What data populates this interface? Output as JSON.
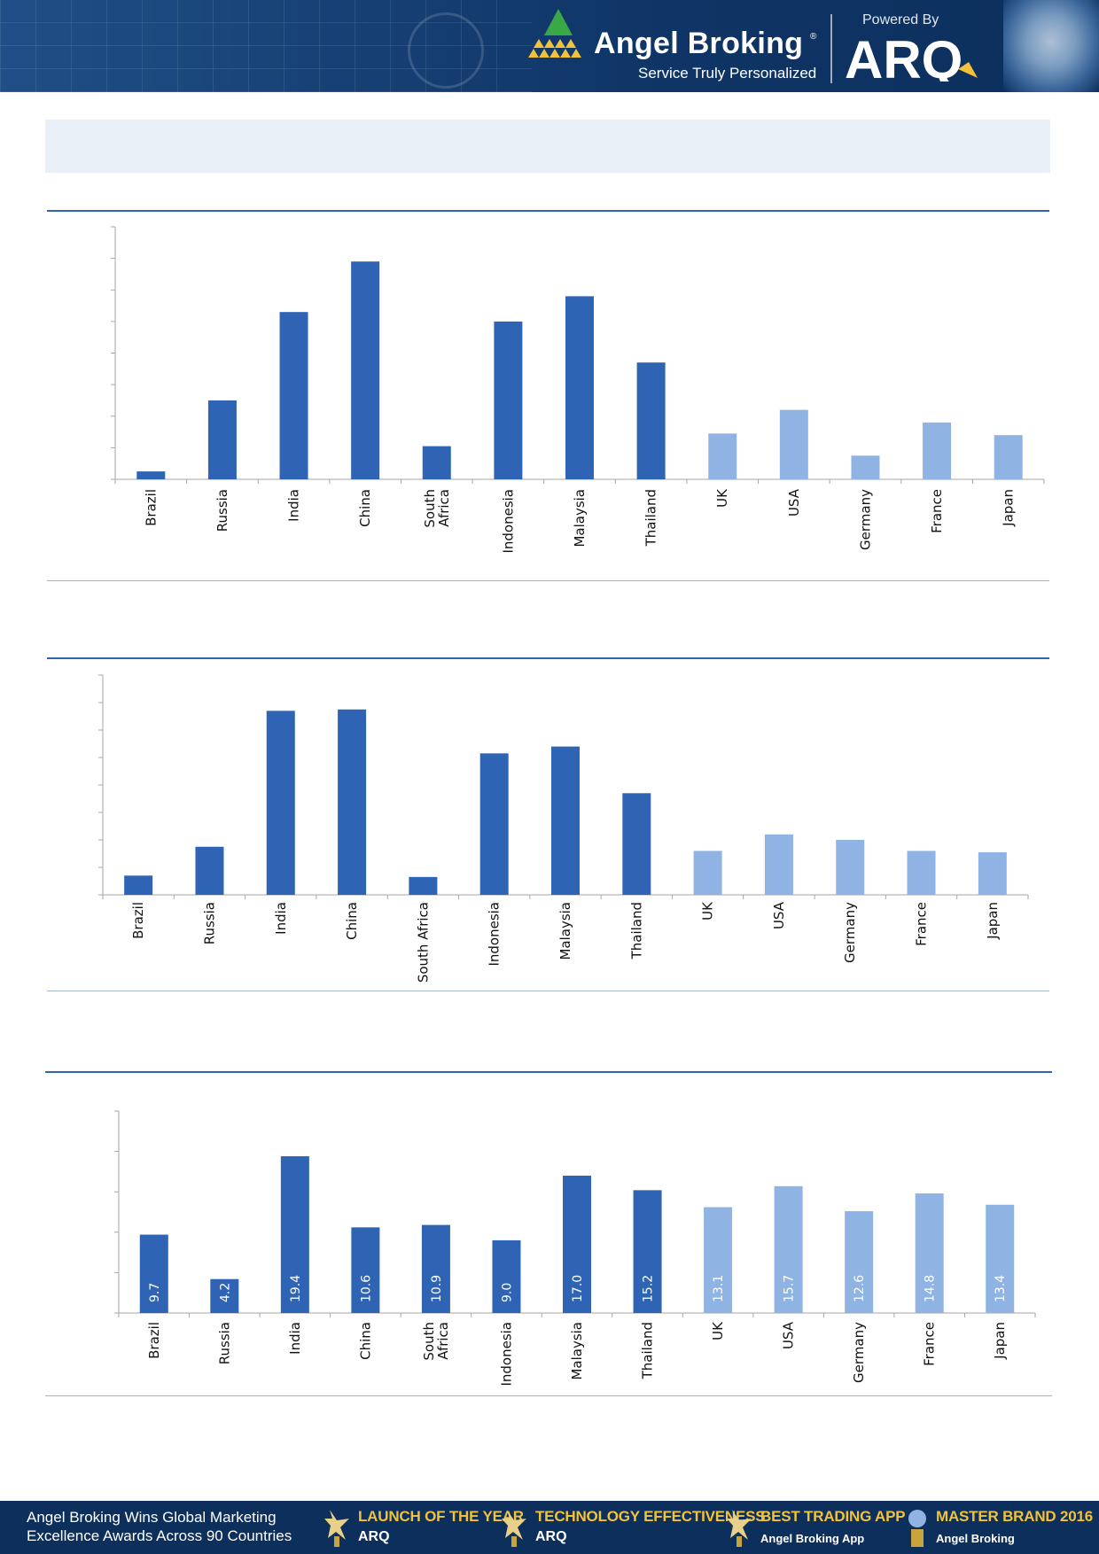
{
  "header": {
    "brand_name": "Angel Broking",
    "brand_registered": "®",
    "brand_tagline": "Service Truly Personalized",
    "powered_by": "Powered By",
    "partner_logo": "ARQ",
    "colors": {
      "header_bg": "#0f3566",
      "accent_gold": "#f2c23a",
      "accent_green": "#3aa845"
    }
  },
  "chart_data": [
    {
      "type": "bar",
      "categories": [
        "Brazil",
        "Russia",
        "India",
        "China",
        "South Africa",
        "Indonesia",
        "Malaysia",
        "Thailand",
        "UK",
        "USA",
        "Germany",
        "France",
        "Japan"
      ],
      "category_lines": [
        [
          "Brazil"
        ],
        [
          "Russia"
        ],
        [
          "India"
        ],
        [
          "China"
        ],
        [
          "South",
          "Africa"
        ],
        [
          "Indonesia"
        ],
        [
          "Malaysia"
        ],
        [
          "Thailand"
        ],
        [
          "UK"
        ],
        [
          "USA"
        ],
        [
          "Germany"
        ],
        [
          "France"
        ],
        [
          "Japan"
        ]
      ],
      "values": [
        0.25,
        2.5,
        5.3,
        6.9,
        1.05,
        5.0,
        5.8,
        3.7,
        1.45,
        2.2,
        0.75,
        1.8,
        1.4
      ],
      "ylim": [
        0,
        8
      ],
      "y_ticks": 8,
      "group": [
        "emerging",
        "emerging",
        "emerging",
        "emerging",
        "emerging",
        "emerging",
        "emerging",
        "emerging",
        "developed",
        "developed",
        "developed",
        "developed",
        "developed"
      ],
      "colors": {
        "emerging": "#2e64b3",
        "developed": "#8fb4e3",
        "axis": "#a6a6a6"
      },
      "grid": false,
      "legend": "none"
    },
    {
      "type": "bar",
      "categories": [
        "Brazil",
        "Russia",
        "India",
        "China",
        "South Africa",
        "Indonesia",
        "Malaysia",
        "Thailand",
        "UK",
        "USA",
        "Germany",
        "France",
        "Japan"
      ],
      "category_lines": [
        [
          "Brazil"
        ],
        [
          "Russia"
        ],
        [
          "India"
        ],
        [
          "China"
        ],
        [
          "South Africa"
        ],
        [
          "Indonesia"
        ],
        [
          "Malaysia"
        ],
        [
          "Thailand"
        ],
        [
          "UK"
        ],
        [
          "USA"
        ],
        [
          "Germany"
        ],
        [
          "France"
        ],
        [
          "Japan"
        ]
      ],
      "values": [
        0.7,
        1.75,
        6.7,
        6.75,
        0.65,
        5.15,
        5.4,
        3.7,
        1.6,
        2.2,
        2.0,
        1.6,
        1.55
      ],
      "ylim": [
        0,
        8
      ],
      "y_ticks": 8,
      "group": [
        "emerging",
        "emerging",
        "emerging",
        "emerging",
        "emerging",
        "emerging",
        "emerging",
        "emerging",
        "developed",
        "developed",
        "developed",
        "developed",
        "developed"
      ],
      "colors": {
        "emerging": "#2e64b3",
        "developed": "#8fb4e3",
        "axis": "#a6a6a6"
      },
      "grid": false,
      "legend": "none"
    },
    {
      "type": "bar",
      "categories": [
        "Brazil",
        "Russia",
        "India",
        "China",
        "South Africa",
        "Indonesia",
        "Malaysia",
        "Thailand",
        "UK",
        "USA",
        "Germany",
        "France",
        "Japan"
      ],
      "category_lines": [
        [
          "Brazil"
        ],
        [
          "Russia"
        ],
        [
          "India"
        ],
        [
          "China"
        ],
        [
          "South",
          "Africa"
        ],
        [
          "Indonesia"
        ],
        [
          "Malaysia"
        ],
        [
          "Thailand"
        ],
        [
          "UK"
        ],
        [
          "USA"
        ],
        [
          "Germany"
        ],
        [
          "France"
        ],
        [
          "Japan"
        ]
      ],
      "values": [
        9.7,
        4.2,
        19.4,
        10.6,
        10.9,
        9.0,
        17.0,
        15.2,
        13.1,
        15.7,
        12.6,
        14.8,
        13.4
      ],
      "data_labels": [
        "9.7",
        "4.2",
        "19.4",
        "10.6",
        "10.9",
        "9.0",
        "17.0",
        "15.2",
        "13.1",
        "15.7",
        "12.6",
        "14.8",
        "13.4"
      ],
      "ylim": [
        0,
        25
      ],
      "y_ticks": 5,
      "group": [
        "emerging",
        "emerging",
        "emerging",
        "emerging",
        "emerging",
        "emerging",
        "emerging",
        "emerging",
        "developed",
        "developed",
        "developed",
        "developed",
        "developed"
      ],
      "colors": {
        "emerging": "#2e64b3",
        "developed": "#8fb4e3",
        "axis": "#a6a6a6"
      },
      "grid": false,
      "legend": "none"
    }
  ],
  "footer": {
    "text_line1": "Angel Broking Wins Global Marketing",
    "text_line2": "Excellence Awards Across 90 Countries",
    "awards": [
      {
        "title": "LAUNCH OF THE YEAR",
        "sub": "ARQ"
      },
      {
        "title": "TECHNOLOGY EFFECTIVENESS",
        "sub": "ARQ"
      },
      {
        "title": "BEST TRADING APP",
        "sub": "Angel Broking App"
      },
      {
        "title": "MASTER BRAND 2016",
        "sub": "Angel Broking"
      }
    ]
  }
}
